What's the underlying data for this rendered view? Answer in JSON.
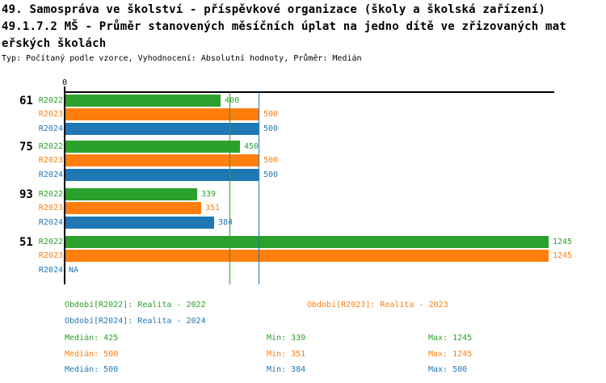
{
  "header": {
    "title_lines": [
      "49. Samospráva ve školství - příspěvkové organizace (školy a školská zařízení)",
      "49.1.7.2 MŠ - Průměr stanovených měsíčních úplat na jedno dítě ve zřizovaných mat",
      "eřských školách"
    ],
    "meta": "Typ: Počítaný podle vzorce, Vyhodnocení: Absolutní hodnoty, Průměr: Medián"
  },
  "colors": {
    "green": "#2ca02c",
    "orange": "#ff7f0e",
    "blue": "#1f77b4",
    "axis": "#000000"
  },
  "chart_data": {
    "type": "bar",
    "orientation": "horizontal",
    "xlim": [
      0,
      1262
    ],
    "x_tick_labels": [
      "0"
    ],
    "grid": false,
    "series": [
      {
        "name": "R2022",
        "color_key": "green"
      },
      {
        "name": "R2023",
        "color_key": "orange"
      },
      {
        "name": "R2024",
        "color_key": "blue"
      }
    ],
    "groups": [
      {
        "label": "61",
        "values": [
          400,
          500,
          500
        ],
        "value_labels": [
          "400",
          "500",
          "500"
        ]
      },
      {
        "label": "75",
        "values": [
          450,
          500,
          500
        ],
        "value_labels": [
          "450",
          "500",
          "500"
        ]
      },
      {
        "label": "93",
        "values": [
          339,
          351,
          384
        ],
        "value_labels": [
          "339",
          "351",
          "384"
        ]
      },
      {
        "label": "51",
        "values": [
          1245,
          1245,
          null
        ],
        "value_labels": [
          "1245",
          "1245",
          "NA"
        ]
      }
    ],
    "na_label": "NA",
    "reference_lines": [
      {
        "value": 425,
        "color_key": "green"
      },
      {
        "value": 500,
        "color_key": "orange"
      },
      {
        "value": 500,
        "color_key": "blue"
      }
    ],
    "legend": [
      {
        "label": "Období[R2022]: Realita - 2022",
        "color_key": "green",
        "row": 0,
        "col": 0
      },
      {
        "label": "Období[R2023]: Realita - 2023",
        "color_key": "orange",
        "row": 0,
        "col": 1
      },
      {
        "label": "Období[R2024]: Realita - 2024",
        "color_key": "blue",
        "row": 1,
        "col": 0
      }
    ],
    "stats": [
      {
        "color_key": "green",
        "median": "Medián: 425",
        "min": "Min: 339",
        "max": "Max: 1245"
      },
      {
        "color_key": "orange",
        "median": "Medián: 500",
        "min": "Min: 351",
        "max": "Max: 1245"
      },
      {
        "color_key": "blue",
        "median": "Medián: 500",
        "min": "Min: 384",
        "max": "Max: 500"
      }
    ]
  }
}
